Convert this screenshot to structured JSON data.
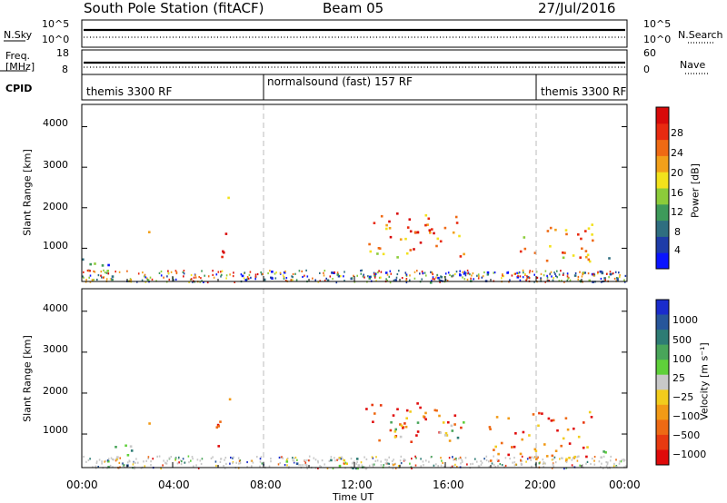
{
  "header": {
    "station": "South Pole Station (fitACF)",
    "beam": "Beam 05",
    "date": "27/Jul/2016"
  },
  "top_panels": {
    "nsky_label": "N.Sky",
    "nsearch_label": "N.Search",
    "freq_label_1": "Freq.",
    "freq_label_2": "[MHz]",
    "nave_label": "Nave",
    "cpid_label": "CPID",
    "left_ticks_nsky": [
      "10^5",
      "10^0"
    ],
    "right_ticks_nsky": [
      "10^5",
      "10^0"
    ],
    "left_ticks_freq": [
      "18",
      "8"
    ],
    "right_ticks_nave": [
      "60",
      "0"
    ]
  },
  "cpid_segments": [
    {
      "label": "themis 3300 RF",
      "start_h": 0,
      "end_h": 8
    },
    {
      "label": "normalsound (fast) 157 RF",
      "start_h": 8,
      "end_h": 20
    },
    {
      "label": "themis 3300 RF",
      "start_h": 20,
      "end_h": 24
    }
  ],
  "chart_data": [
    {
      "type": "heatmap",
      "quantity": "Power",
      "ylabel": "Slant Range [km]",
      "ylim": [
        180,
        4550
      ],
      "yticks": [
        "1000",
        "2000",
        "3000",
        "4000"
      ],
      "xlim": [
        0,
        24
      ],
      "colorbar_label": "Power [dB]",
      "colorbar_ticks": [
        "4",
        "8",
        "12",
        "16",
        "20",
        "24",
        "28"
      ],
      "colorbar_colors": [
        "#0a14ff",
        "#1e3ca8",
        "#2f6e80",
        "#3e9a5a",
        "#8ccc3a",
        "#f2e21c",
        "#f2a01a",
        "#ef6a14",
        "#e82a10",
        "#d80a0a"
      ],
      "blobs": [
        {
          "t0": 0.0,
          "t1": 1.6,
          "r0": 180,
          "r1": 800,
          "level": 0.3
        },
        {
          "t0": 2.55,
          "t1": 2.95,
          "r0": 1150,
          "r1": 1550,
          "level": 0.55
        },
        {
          "t0": 5.9,
          "t1": 6.6,
          "r0": 700,
          "r1": 1450,
          "level": 0.95
        },
        {
          "t0": 6.3,
          "t1": 6.5,
          "r0": 1800,
          "r1": 2450,
          "level": 0.4
        },
        {
          "t0": 7.0,
          "t1": 24.0,
          "r0": 180,
          "r1": 450,
          "level": 0.2
        },
        {
          "t0": 12.5,
          "t1": 16.8,
          "r0": 800,
          "r1": 1900,
          "level": 0.7
        },
        {
          "t0": 14.3,
          "t1": 15.6,
          "r0": 850,
          "r1": 1500,
          "level": 0.95
        },
        {
          "t0": 19.0,
          "t1": 22.6,
          "r0": 700,
          "r1": 1650,
          "level": 0.7
        },
        {
          "t0": 22.3,
          "t1": 23.3,
          "r0": 350,
          "r1": 800,
          "level": 0.35
        }
      ]
    },
    {
      "type": "heatmap",
      "quantity": "Velocity",
      "ylabel": "Slant Range [km]",
      "ylim": [
        180,
        4550
      ],
      "yticks": [
        "1000",
        "2000",
        "3000",
        "4000"
      ],
      "xlim": [
        0,
        24
      ],
      "xticks": [
        "00:00",
        "04:00",
        "08:00",
        "12:00",
        "16:00",
        "20:00",
        "00:00"
      ],
      "xlabel": "Time UT",
      "colorbar_label": "Velocity [m s⁻¹]",
      "colorbar_ticks": [
        "1000",
        "500",
        "100",
        "25",
        "−25",
        "−100",
        "−500",
        "−1000"
      ],
      "colorbar_colors": [
        "#1a2ccc",
        "#27569a",
        "#2e7c74",
        "#49a55a",
        "#5fd03a",
        "#c8c8c8",
        "#f2cc1c",
        "#f29a16",
        "#ee6a14",
        "#e83a10",
        "#e00a0a"
      ],
      "blobs": [
        {
          "t0": 0.0,
          "t1": 2.2,
          "r0": 180,
          "r1": 800,
          "level": 0.35
        },
        {
          "t0": 2.55,
          "t1": 2.95,
          "r0": 1200,
          "r1": 1550,
          "level": 0.7
        },
        {
          "t0": 5.9,
          "t1": 6.6,
          "r0": 700,
          "r1": 1600,
          "level": 0.75
        },
        {
          "t0": 6.3,
          "t1": 6.5,
          "r0": 1800,
          "r1": 2300,
          "level": 0.5
        },
        {
          "t0": 7.0,
          "t1": 13.0,
          "r0": 180,
          "r1": 450,
          "level": 0.4
        },
        {
          "t0": 12.3,
          "t1": 16.8,
          "r0": 800,
          "r1": 1800,
          "level": 0.85
        },
        {
          "t0": 13.5,
          "t1": 16.8,
          "r0": 850,
          "r1": 1350,
          "level": 0.45
        },
        {
          "t0": 17.5,
          "t1": 22.6,
          "r0": 350,
          "r1": 1600,
          "level": 0.8
        },
        {
          "t0": 22.4,
          "t1": 23.3,
          "r0": 400,
          "r1": 750,
          "level": 0.35
        }
      ]
    }
  ]
}
